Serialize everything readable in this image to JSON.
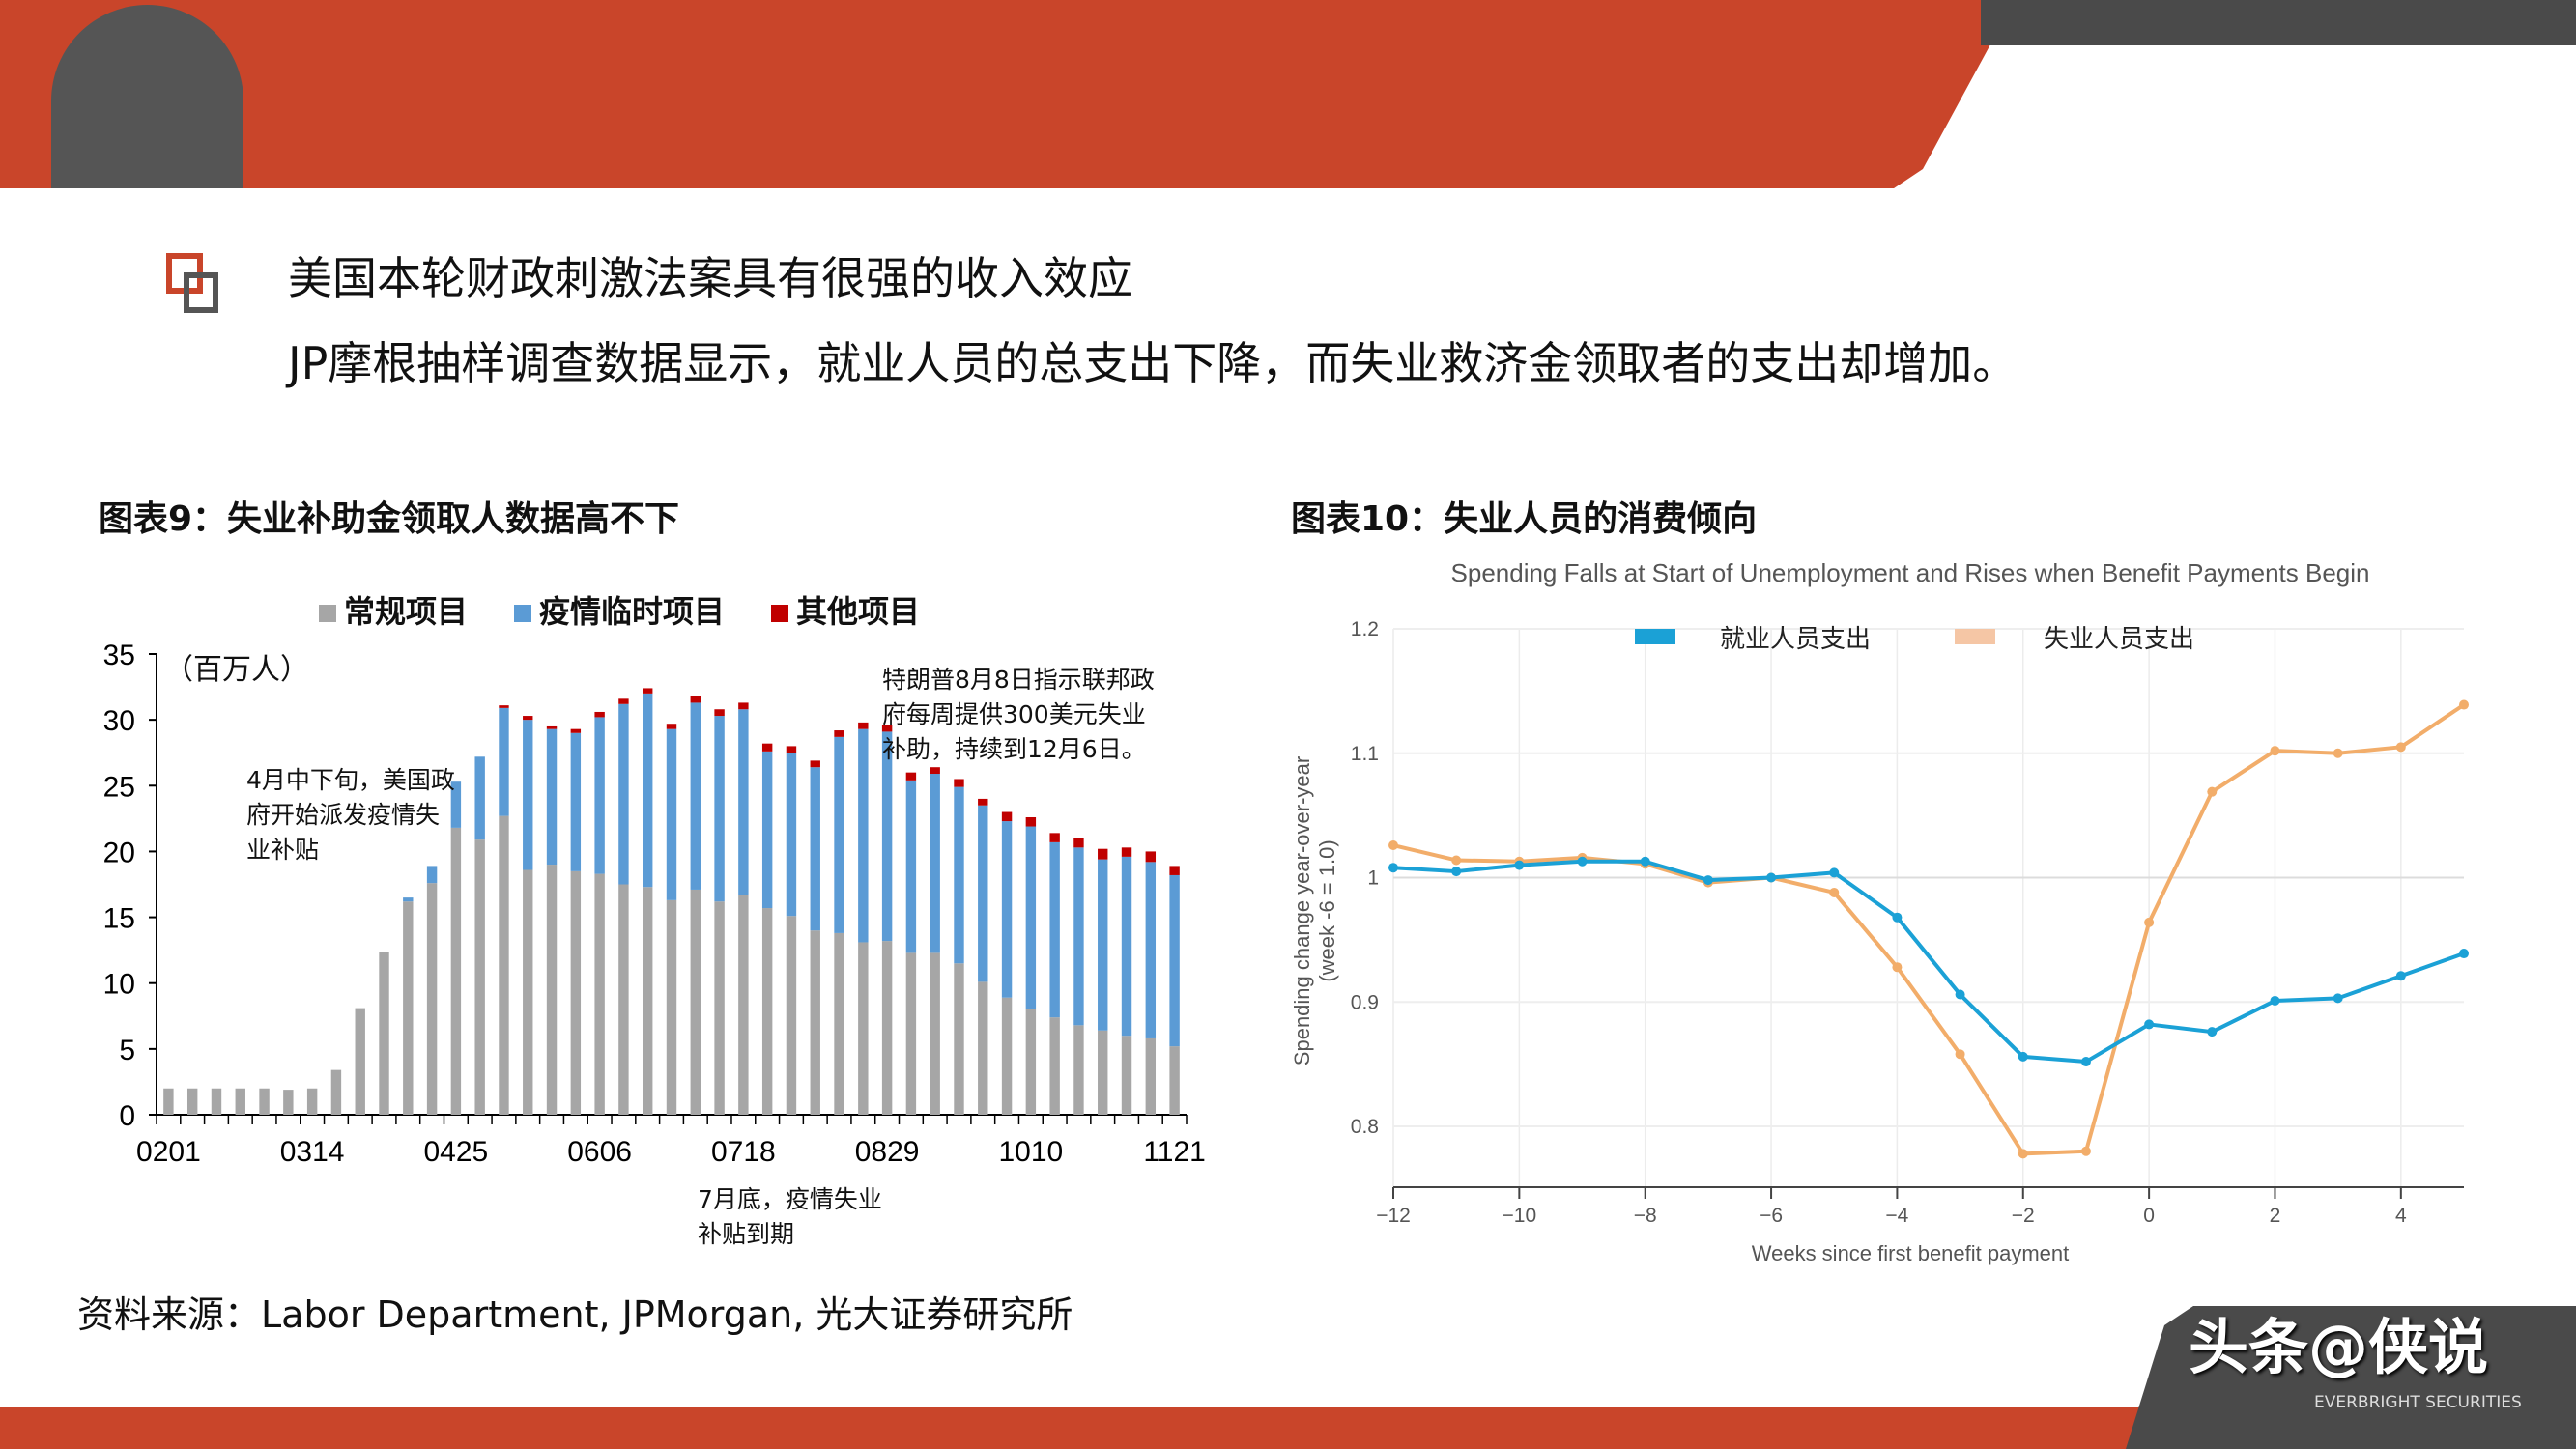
{
  "header": {
    "bullet_title": "美国本轮财政刺激法案具有很强的收入效应",
    "bullet_text": "JP摩根抽样调查数据显示，就业人员的总支出下降，而失业救济金领取者的支出却增加。"
  },
  "colors": {
    "brand": "#c9452a",
    "dark": "#4a4a4a"
  },
  "chart9_title": "图表9：失业补助金领取人数据高不下",
  "chart10_title": "图表10：失业人员的消费倾向",
  "source": "资料来源：Labor Department, JPMorgan, 光大证券研究所",
  "watermark": {
    "text": "头条@侠说",
    "sub": "EVERBRIGHT SECURITIES"
  },
  "chart_data": [
    {
      "type": "bar",
      "stacked": true,
      "unit_label": "（百万人）",
      "ylim": [
        0,
        35
      ],
      "yticks": [
        0,
        5,
        10,
        15,
        20,
        25,
        30,
        35
      ],
      "xtick_labels": [
        "0201",
        "0314",
        "0425",
        "0606",
        "0718",
        "0829",
        "1010",
        "1121"
      ],
      "legend_position": "top",
      "series": [
        {
          "name": "常规项目",
          "color": "#a6a6a6",
          "values": [
            2,
            2,
            2,
            2,
            2,
            1.9,
            2,
            3.4,
            8.1,
            12.4,
            16.2,
            17.6,
            21.8,
            20.9,
            22.7,
            18.6,
            19.0,
            18.5,
            18.3,
            17.5,
            17.3,
            16.3,
            17.1,
            16.2,
            16.7,
            15.7,
            15.1,
            14.0,
            13.8,
            13.1,
            13.2,
            12.3,
            12.3,
            11.5,
            10.1,
            8.9,
            8.0,
            7.4,
            6.8,
            6.4,
            6.0,
            5.8,
            5.2
          ]
        },
        {
          "name": "疫情临时项目",
          "color": "#5b9bd5",
          "values": [
            0,
            0,
            0,
            0,
            0,
            0,
            0,
            0,
            0,
            0,
            0.3,
            1.3,
            3.5,
            6.3,
            8.2,
            11.4,
            10.3,
            10.5,
            11.9,
            13.7,
            14.7,
            13.0,
            14.2,
            14.1,
            14.1,
            11.9,
            12.4,
            12.4,
            14.9,
            16.2,
            15.9,
            13.1,
            13.6,
            13.4,
            13.4,
            13.4,
            13.9,
            13.3,
            13.5,
            13.0,
            13.6,
            13.4,
            13.0
          ]
        },
        {
          "name": "其他项目",
          "color": "#c00000",
          "values": [
            0,
            0,
            0,
            0,
            0,
            0,
            0,
            0,
            0,
            0,
            0,
            0,
            0,
            0,
            0.2,
            0.3,
            0.2,
            0.3,
            0.4,
            0.4,
            0.4,
            0.4,
            0.5,
            0.5,
            0.5,
            0.6,
            0.5,
            0.5,
            0.5,
            0.5,
            0.5,
            0.6,
            0.5,
            0.6,
            0.5,
            0.7,
            0.7,
            0.7,
            0.7,
            0.8,
            0.7,
            0.8,
            0.7
          ]
        }
      ],
      "annotations": [
        "4月中下旬，美国政\n府开始派发疫情失\n业补贴",
        "特朗普8月8日指示联邦政\n府每周提供300美元失业\n补助，持续到12月6日。",
        "7月底，疫情失业\n补贴到期"
      ]
    },
    {
      "type": "line",
      "title": "Spending Falls at Start of Unemployment and Rises when Benefit Payments Begin",
      "xlabel": "Weeks since first benefit payment",
      "ylabel": "Spending change year-over-year",
      "ylabel2": "(week -6 = 1.0)",
      "xlim": [
        -12,
        5
      ],
      "ylim": [
        0.75,
        1.2
      ],
      "xticks": [
        -12,
        -10,
        -8,
        -6,
        -4,
        -2,
        0,
        2,
        4
      ],
      "yticks": [
        0.8,
        0.9,
        1,
        1.1,
        1.2
      ],
      "ytick_labels": [
        "0.8",
        "0.9",
        "1",
        "1.1",
        "1.2"
      ],
      "grid": true,
      "legend_position": "top",
      "x": [
        -12,
        -11,
        -10,
        -9,
        -8,
        -7,
        -6,
        -5,
        -4,
        -3,
        -2,
        -1,
        0,
        1,
        2,
        3,
        4,
        5
      ],
      "series": [
        {
          "name": "就业人员支出",
          "color": "#1ba1d6",
          "values": [
            1.008,
            1.005,
            1.01,
            1.013,
            1.013,
            0.998,
            1.0,
            1.004,
            0.968,
            0.906,
            0.856,
            0.852,
            0.882,
            0.876,
            0.901,
            0.903,
            0.921,
            0.939
          ]
        },
        {
          "name": "失业人员支出",
          "color": "#f2ad6a",
          "legend_color": "#f5c6a5",
          "values": [
            1.026,
            1.014,
            1.013,
            1.016,
            1.011,
            0.996,
            1.0,
            0.988,
            0.928,
            0.858,
            0.778,
            0.78,
            0.964,
            1.069,
            1.102,
            1.1,
            1.105,
            1.139
          ]
        }
      ]
    }
  ]
}
